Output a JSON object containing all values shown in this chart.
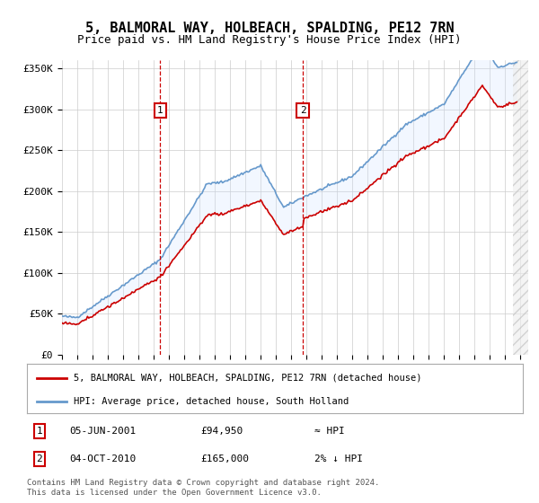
{
  "title": "5, BALMORAL WAY, HOLBEACH, SPALDING, PE12 7RN",
  "subtitle": "Price paid vs. HM Land Registry's House Price Index (HPI)",
  "legend_line1": "5, BALMORAL WAY, HOLBEACH, SPALDING, PE12 7RN (detached house)",
  "legend_line2": "HPI: Average price, detached house, South Holland",
  "footnote": "Contains HM Land Registry data © Crown copyright and database right 2024.\nThis data is licensed under the Open Government Licence v3.0.",
  "sale1_date": "05-JUN-2001",
  "sale1_price": "£94,950",
  "sale1_hpi": "≈ HPI",
  "sale2_date": "04-OCT-2010",
  "sale2_price": "£165,000",
  "sale2_hpi": "2% ↓ HPI",
  "sale1_year": 2001.42,
  "sale1_value": 94950,
  "sale2_year": 2010.75,
  "sale2_value": 165000,
  "ylim": [
    0,
    360000
  ],
  "xlim": [
    1995,
    2025.5
  ],
  "yticks": [
    0,
    50000,
    100000,
    150000,
    200000,
    250000,
    300000,
    350000
  ],
  "ytick_labels": [
    "£0",
    "£50K",
    "£100K",
    "£150K",
    "£200K",
    "£250K",
    "£300K",
    "£350K"
  ],
  "xticks": [
    1995,
    1996,
    1997,
    1998,
    1999,
    2000,
    2001,
    2002,
    2003,
    2004,
    2005,
    2006,
    2007,
    2008,
    2009,
    2010,
    2011,
    2012,
    2013,
    2014,
    2015,
    2016,
    2017,
    2018,
    2019,
    2020,
    2021,
    2022,
    2023,
    2024,
    2025
  ],
  "sale_line_color": "#cc0000",
  "hpi_line_color": "#6699cc",
  "price_line_color": "#cc0000",
  "shade_color": "#cce0ff",
  "background_color": "#ffffff",
  "grid_color": "#cccccc",
  "marker_box_color": "#cc0000"
}
